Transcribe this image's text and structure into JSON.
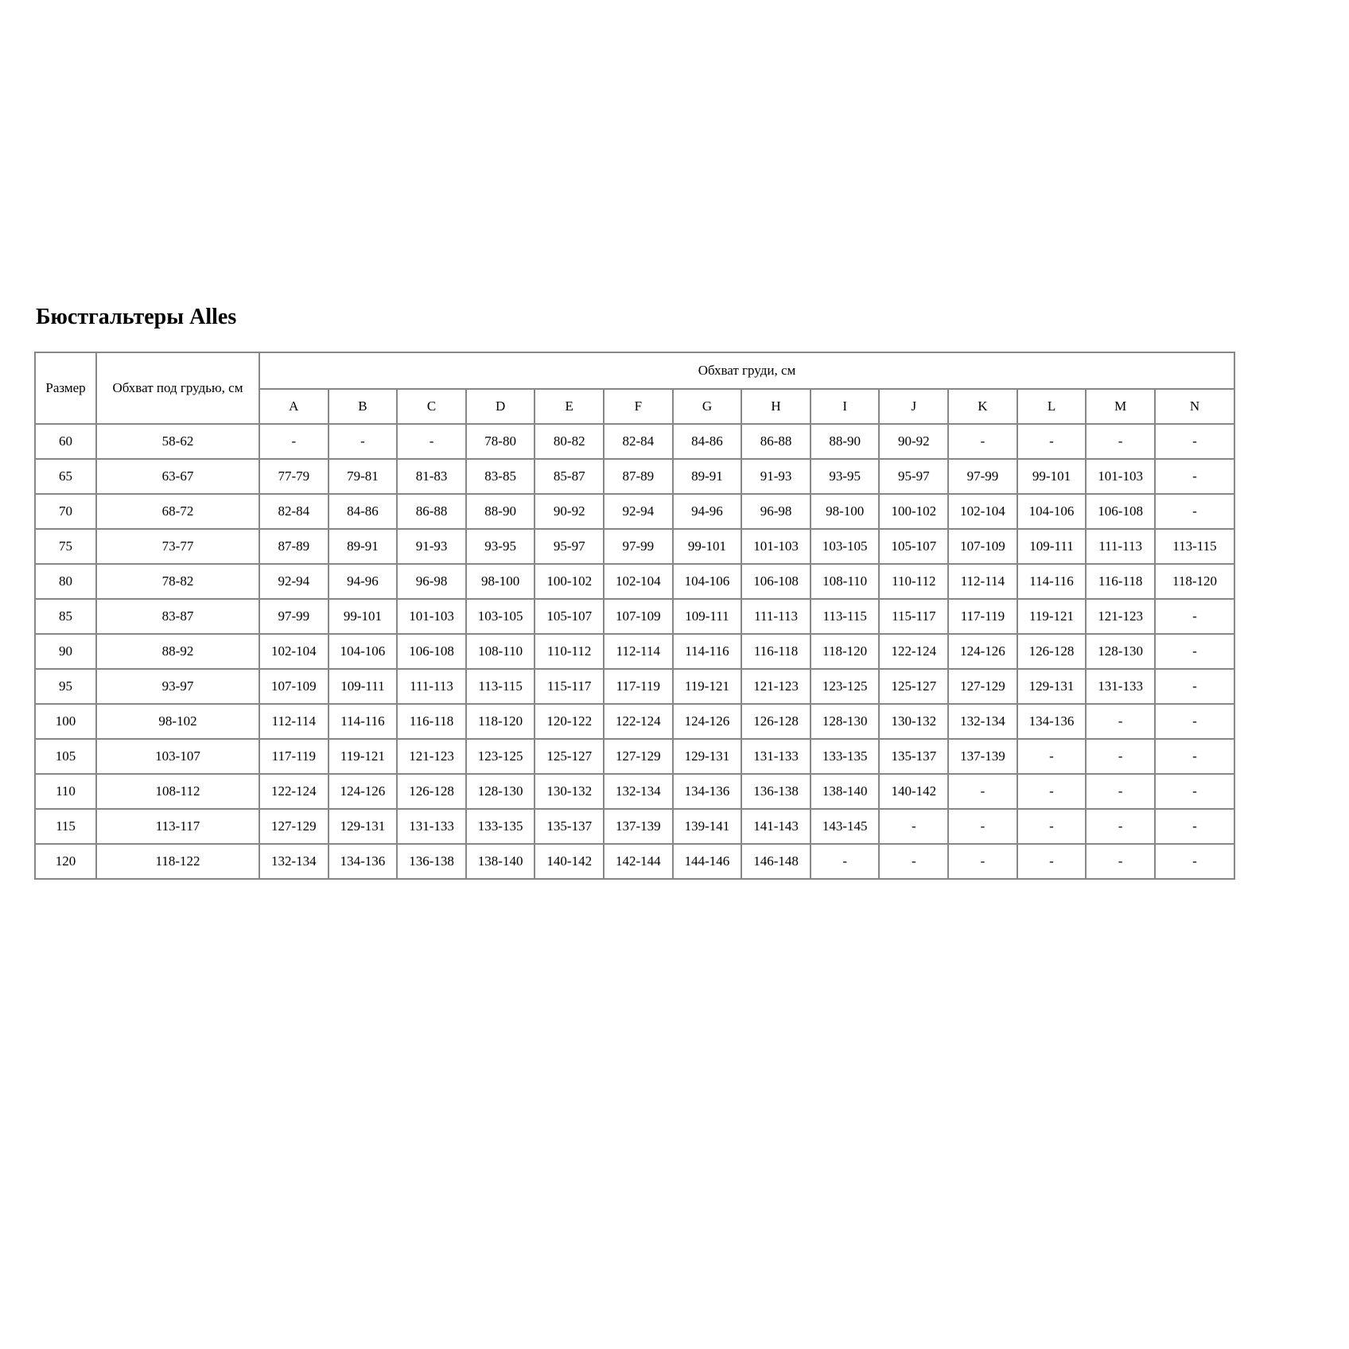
{
  "page": {
    "title": "Бюстгальтеры Alles"
  },
  "colors": {
    "background": "#ffffff",
    "text": "#000000",
    "table_border": "#878787"
  },
  "table": {
    "header": {
      "size_label": "Размер",
      "underbust_label": "Обхват под грудью, см",
      "bust_label": "Обхват груди, см",
      "cup_columns": [
        "A",
        "B",
        "C",
        "D",
        "E",
        "F",
        "G",
        "H",
        "I",
        "J",
        "K",
        "L",
        "M",
        "N"
      ]
    },
    "rows": [
      {
        "size": "60",
        "underbust": "58-62",
        "cups": [
          "-",
          "-",
          "-",
          "78-80",
          "80-82",
          "82-84",
          "84-86",
          "86-88",
          "88-90",
          "90-92",
          "-",
          "-",
          "-",
          "-"
        ]
      },
      {
        "size": "65",
        "underbust": "63-67",
        "cups": [
          "77-79",
          "79-81",
          "81-83",
          "83-85",
          "85-87",
          "87-89",
          "89-91",
          "91-93",
          "93-95",
          "95-97",
          "97-99",
          "99-101",
          "101-103",
          "-"
        ]
      },
      {
        "size": "70",
        "underbust": "68-72",
        "cups": [
          "82-84",
          "84-86",
          "86-88",
          "88-90",
          "90-92",
          "92-94",
          "94-96",
          "96-98",
          "98-100",
          "100-102",
          "102-104",
          "104-106",
          "106-108",
          "-"
        ]
      },
      {
        "size": "75",
        "underbust": "73-77",
        "cups": [
          "87-89",
          "89-91",
          "91-93",
          "93-95",
          "95-97",
          "97-99",
          "99-101",
          "101-103",
          "103-105",
          "105-107",
          "107-109",
          "109-111",
          "111-113",
          "113-115"
        ]
      },
      {
        "size": "80",
        "underbust": "78-82",
        "cups": [
          "92-94",
          "94-96",
          "96-98",
          "98-100",
          "100-102",
          "102-104",
          "104-106",
          "106-108",
          "108-110",
          "110-112",
          "112-114",
          "114-116",
          "116-118",
          "118-120"
        ]
      },
      {
        "size": "85",
        "underbust": "83-87",
        "cups": [
          "97-99",
          "99-101",
          "101-103",
          "103-105",
          "105-107",
          "107-109",
          "109-111",
          "111-113",
          "113-115",
          "115-117",
          "117-119",
          "119-121",
          "121-123",
          "-"
        ]
      },
      {
        "size": "90",
        "underbust": "88-92",
        "cups": [
          "102-104",
          "104-106",
          "106-108",
          "108-110",
          "110-112",
          "112-114",
          "114-116",
          "116-118",
          "118-120",
          "122-124",
          "124-126",
          "126-128",
          "128-130",
          "-"
        ]
      },
      {
        "size": "95",
        "underbust": "93-97",
        "cups": [
          "107-109",
          "109-111",
          "111-113",
          "113-115",
          "115-117",
          "117-119",
          "119-121",
          "121-123",
          "123-125",
          "125-127",
          "127-129",
          "129-131",
          "131-133",
          "-"
        ]
      },
      {
        "size": "100",
        "underbust": "98-102",
        "cups": [
          "112-114",
          "114-116",
          "116-118",
          "118-120",
          "120-122",
          "122-124",
          "124-126",
          "126-128",
          "128-130",
          "130-132",
          "132-134",
          "134-136",
          "-",
          "-"
        ]
      },
      {
        "size": "105",
        "underbust": "103-107",
        "cups": [
          "117-119",
          "119-121",
          "121-123",
          "123-125",
          "125-127",
          "127-129",
          "129-131",
          "131-133",
          "133-135",
          "135-137",
          "137-139",
          "-",
          "-",
          "-"
        ]
      },
      {
        "size": "110",
        "underbust": "108-112",
        "cups": [
          "122-124",
          "124-126",
          "126-128",
          "128-130",
          "130-132",
          "132-134",
          "134-136",
          "136-138",
          "138-140",
          "140-142",
          "-",
          "-",
          "-",
          "-"
        ]
      },
      {
        "size": "115",
        "underbust": "113-117",
        "cups": [
          "127-129",
          "129-131",
          "131-133",
          "133-135",
          "135-137",
          "137-139",
          "139-141",
          "141-143",
          "143-145",
          "-",
          "-",
          "-",
          "-",
          "-"
        ]
      },
      {
        "size": "120",
        "underbust": "118-122",
        "cups": [
          "132-134",
          "134-136",
          "136-138",
          "138-140",
          "140-142",
          "142-144",
          "144-146",
          "146-148",
          "-",
          "-",
          "-",
          "-",
          "-",
          "-"
        ]
      }
    ]
  }
}
